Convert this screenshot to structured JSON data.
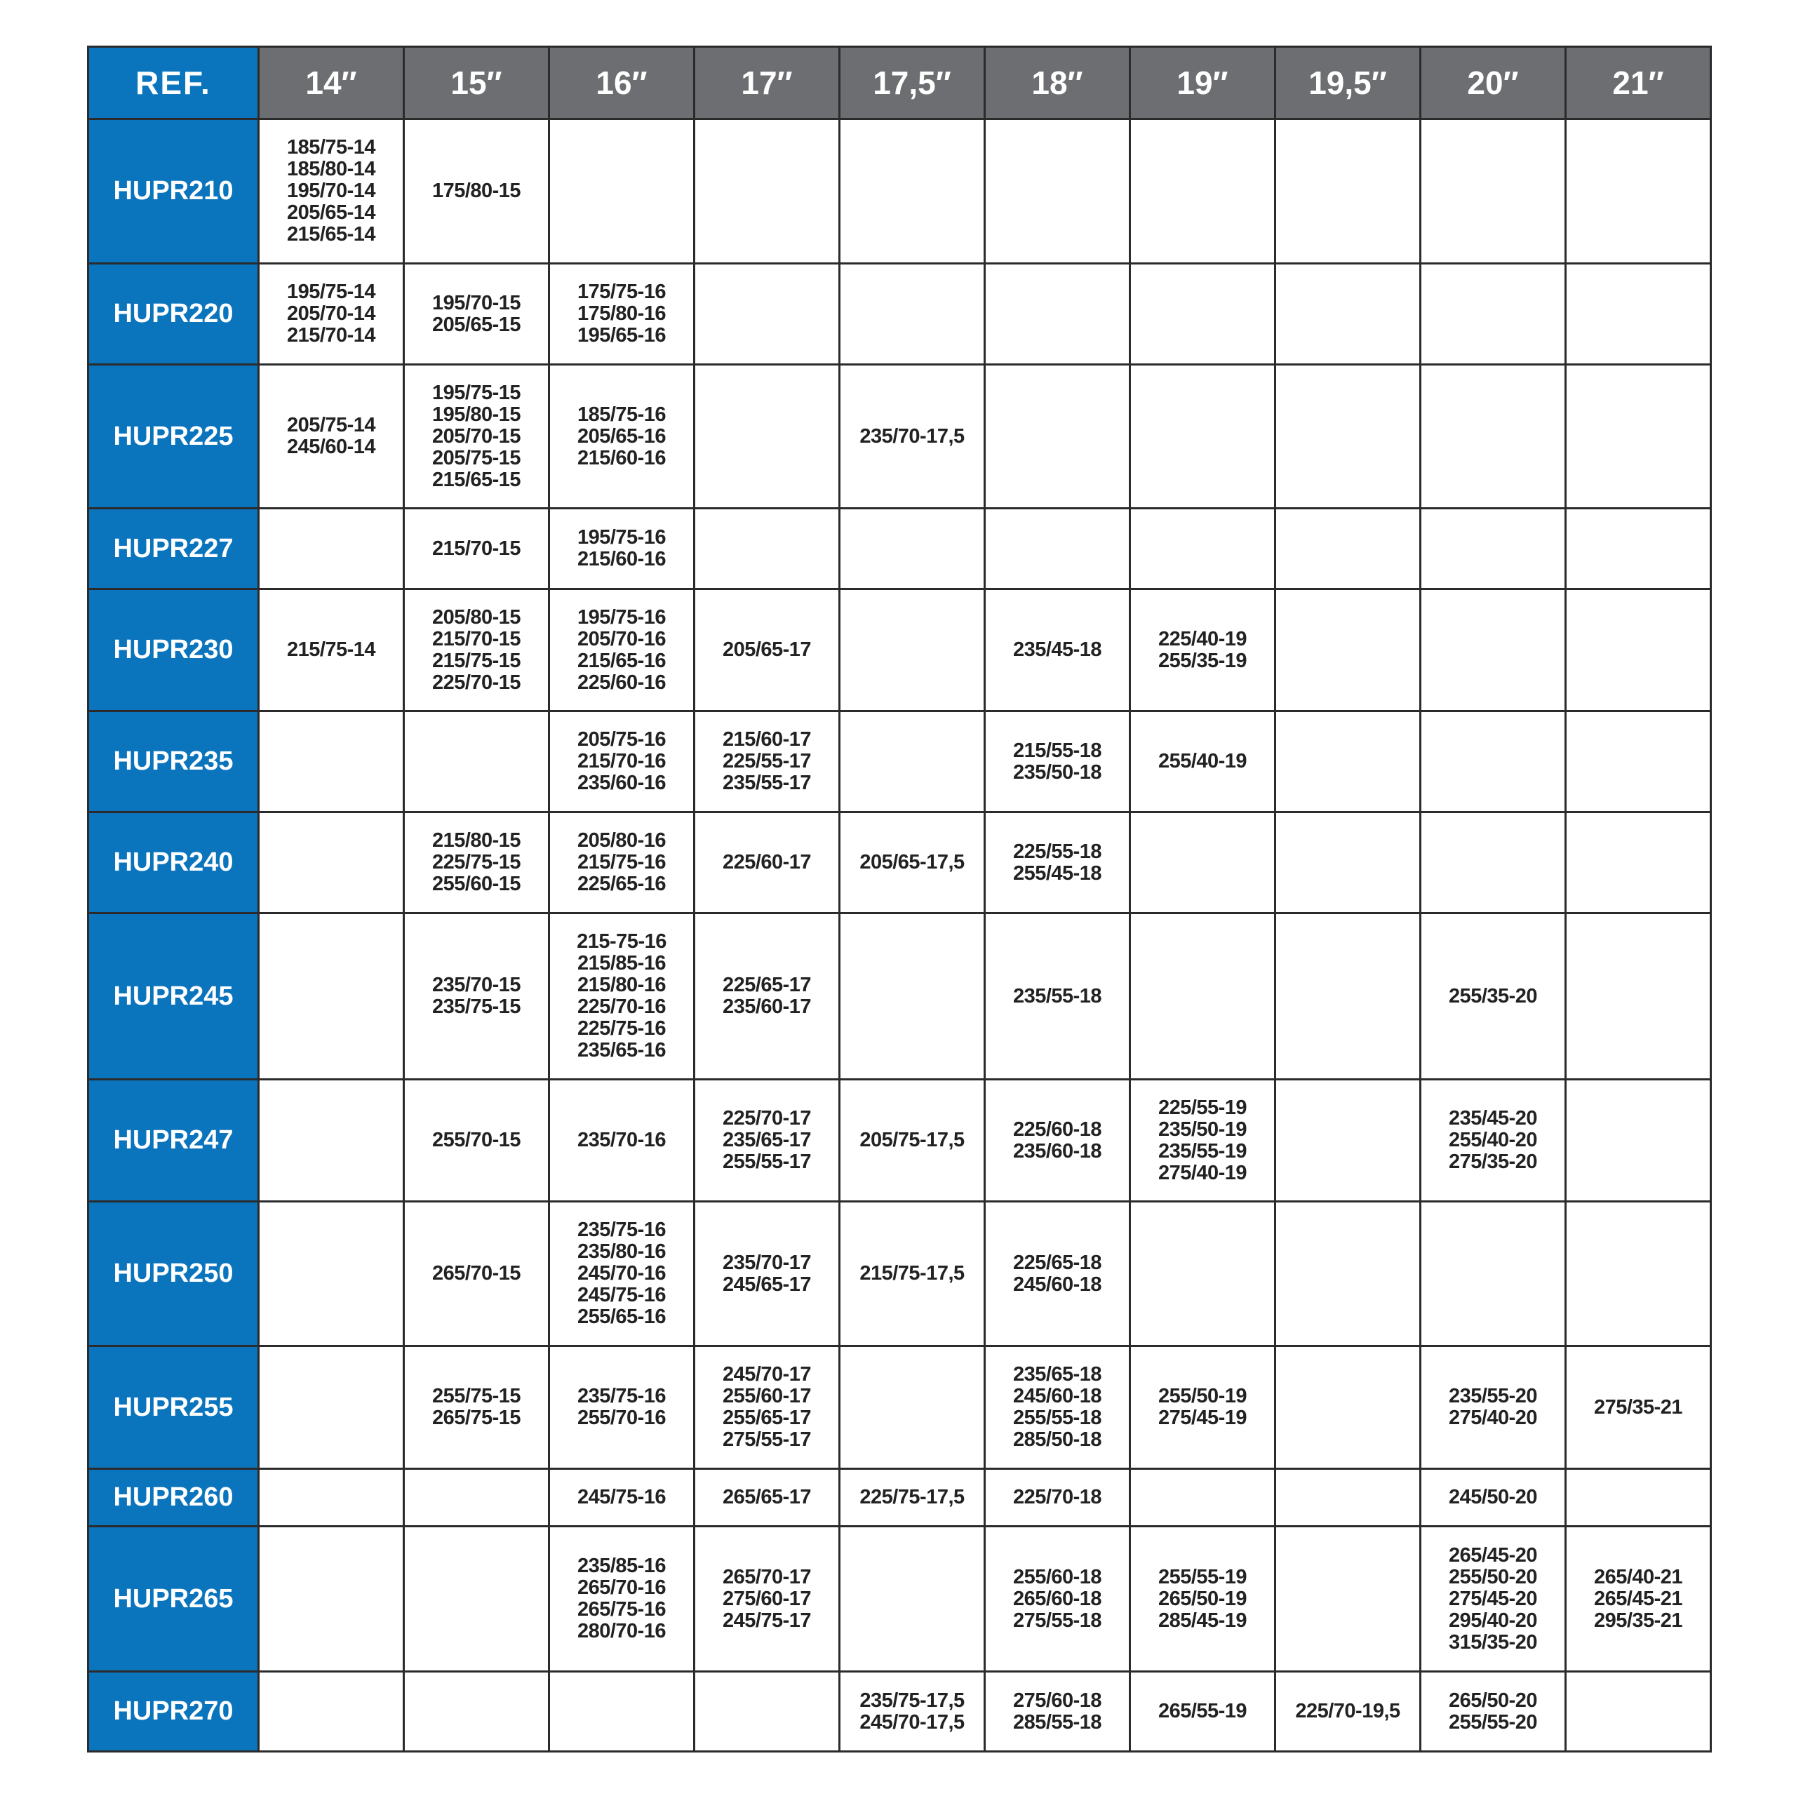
{
  "colors": {
    "ref_bg": "#0a74bd",
    "header_bg": "#6d6e71",
    "text": "#222222",
    "border": "#2b2b2b"
  },
  "header": [
    "REF.",
    "14″",
    "15″",
    "16″",
    "17″",
    "17,5″",
    "18″",
    "19″",
    "19,5″",
    "20″",
    "21″"
  ],
  "rows": [
    {
      "ref": "HUPR210",
      "cells": [
        [
          "185/75-14",
          "185/80-14",
          "195/70-14",
          "205/65-14",
          "215/65-14"
        ],
        [
          "175/80-15"
        ],
        [],
        [],
        [],
        [],
        [],
        [],
        [],
        []
      ]
    },
    {
      "ref": "HUPR220",
      "cells": [
        [
          "195/75-14",
          "205/70-14",
          "215/70-14"
        ],
        [
          "195/70-15",
          "205/65-15"
        ],
        [
          "175/75-16",
          "175/80-16",
          "195/65-16"
        ],
        [],
        [],
        [],
        [],
        [],
        [],
        []
      ]
    },
    {
      "ref": "HUPR225",
      "cells": [
        [
          "205/75-14",
          "245/60-14"
        ],
        [
          "195/75-15",
          "195/80-15",
          "205/70-15",
          "205/75-15",
          "215/65-15"
        ],
        [
          "185/75-16",
          "205/65-16",
          "215/60-16"
        ],
        [],
        [
          "235/70-17,5"
        ],
        [],
        [],
        [],
        [],
        []
      ]
    },
    {
      "ref": "HUPR227",
      "cells": [
        [],
        [
          "215/70-15"
        ],
        [
          "195/75-16",
          "215/60-16"
        ],
        [],
        [],
        [],
        [],
        [],
        [],
        []
      ]
    },
    {
      "ref": "HUPR230",
      "cells": [
        [
          "215/75-14"
        ],
        [
          "205/80-15",
          "215/70-15",
          "215/75-15",
          "225/70-15"
        ],
        [
          "195/75-16",
          "205/70-16",
          "215/65-16",
          "225/60-16"
        ],
        [
          "205/65-17"
        ],
        [],
        [
          "235/45-18"
        ],
        [
          "225/40-19",
          "255/35-19"
        ],
        [],
        [],
        []
      ]
    },
    {
      "ref": "HUPR235",
      "cells": [
        [],
        [],
        [
          "205/75-16",
          "215/70-16",
          "235/60-16"
        ],
        [
          "215/60-17",
          "225/55-17",
          "235/55-17"
        ],
        [],
        [
          "215/55-18",
          "235/50-18"
        ],
        [
          "255/40-19"
        ],
        [],
        [],
        []
      ]
    },
    {
      "ref": "HUPR240",
      "cells": [
        [],
        [
          "215/80-15",
          "225/75-15",
          "255/60-15"
        ],
        [
          "205/80-16",
          "215/75-16",
          "225/65-16"
        ],
        [
          "225/60-17"
        ],
        [
          "205/65-17,5"
        ],
        [
          "225/55-18",
          "255/45-18"
        ],
        [],
        [],
        [],
        []
      ]
    },
    {
      "ref": "HUPR245",
      "cells": [
        [],
        [
          "235/70-15",
          "235/75-15"
        ],
        [
          "215-75-16",
          "215/85-16",
          "215/80-16",
          "225/70-16",
          "225/75-16",
          "235/65-16"
        ],
        [
          "225/65-17",
          "235/60-17"
        ],
        [],
        [
          "235/55-18"
        ],
        [],
        [],
        [
          "255/35-20"
        ],
        []
      ]
    },
    {
      "ref": "HUPR247",
      "cells": [
        [],
        [
          "255/70-15"
        ],
        [
          "235/70-16"
        ],
        [
          "225/70-17",
          "235/65-17",
          "255/55-17"
        ],
        [
          "205/75-17,5"
        ],
        [
          "225/60-18",
          "235/60-18"
        ],
        [
          "225/55-19",
          "235/50-19",
          "235/55-19",
          "275/40-19"
        ],
        [],
        [
          "235/45-20",
          "255/40-20",
          "275/35-20"
        ],
        []
      ]
    },
    {
      "ref": "HUPR250",
      "cells": [
        [],
        [
          "265/70-15"
        ],
        [
          "235/75-16",
          "235/80-16",
          "245/70-16",
          "245/75-16",
          "255/65-16"
        ],
        [
          "235/70-17",
          "245/65-17"
        ],
        [
          "215/75-17,5"
        ],
        [
          "225/65-18",
          "245/60-18"
        ],
        [],
        [],
        [],
        []
      ]
    },
    {
      "ref": "HUPR255",
      "cells": [
        [],
        [
          "255/75-15",
          "265/75-15"
        ],
        [
          "235/75-16",
          "255/70-16"
        ],
        [
          "245/70-17",
          "255/60-17",
          "255/65-17",
          "275/55-17"
        ],
        [],
        [
          "235/65-18",
          "245/60-18",
          "255/55-18",
          "285/50-18"
        ],
        [
          "255/50-19",
          "275/45-19"
        ],
        [],
        [
          "235/55-20",
          "275/40-20"
        ],
        [
          "275/35-21"
        ]
      ]
    },
    {
      "ref": "HUPR260",
      "cells": [
        [],
        [],
        [
          "245/75-16"
        ],
        [
          "265/65-17"
        ],
        [
          "225/75-17,5"
        ],
        [
          "225/70-18"
        ],
        [],
        [],
        [
          "245/50-20"
        ],
        []
      ]
    },
    {
      "ref": "HUPR265",
      "cells": [
        [],
        [],
        [
          "235/85-16",
          "265/70-16",
          "265/75-16",
          "280/70-16"
        ],
        [
          "265/70-17",
          "275/60-17",
          "245/75-17"
        ],
        [],
        [
          "255/60-18",
          "265/60-18",
          "275/55-18"
        ],
        [
          "255/55-19",
          "265/50-19",
          "285/45-19"
        ],
        [],
        [
          "265/45-20",
          "255/50-20",
          "275/45-20",
          "295/40-20",
          "315/35-20"
        ],
        [
          "265/40-21",
          "265/45-21",
          "295/35-21"
        ]
      ]
    },
    {
      "ref": "HUPR270",
      "cells": [
        [],
        [],
        [],
        [],
        [
          "235/75-17,5",
          "245/70-17,5"
        ],
        [
          "275/60-18",
          "285/55-18"
        ],
        [
          "265/55-19"
        ],
        [
          "225/70-19,5"
        ],
        [
          "265/50-20",
          "255/55-20"
        ],
        []
      ]
    }
  ]
}
